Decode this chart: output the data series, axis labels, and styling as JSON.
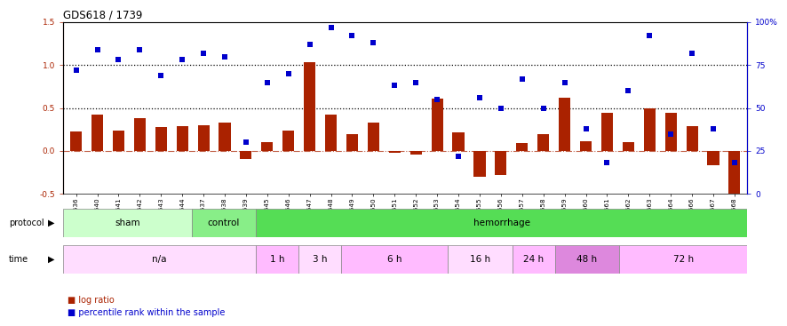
{
  "title": "GDS618 / 1739",
  "samples": [
    "GSM16636",
    "GSM16640",
    "GSM16641",
    "GSM16642",
    "GSM16643",
    "GSM16644",
    "GSM16637",
    "GSM16638",
    "GSM16639",
    "GSM16645",
    "GSM16646",
    "GSM16647",
    "GSM16648",
    "GSM16649",
    "GSM16650",
    "GSM16651",
    "GSM16652",
    "GSM16653",
    "GSM16654",
    "GSM16655",
    "GSM16656",
    "GSM16657",
    "GSM16658",
    "GSM16659",
    "GSM16660",
    "GSM16661",
    "GSM16662",
    "GSM16663",
    "GSM16664",
    "GSM16666",
    "GSM16667",
    "GSM16668"
  ],
  "log_ratio": [
    0.23,
    0.42,
    0.24,
    0.38,
    0.28,
    0.29,
    0.3,
    0.33,
    -0.09,
    0.1,
    0.24,
    1.03,
    0.42,
    0.2,
    0.33,
    -0.02,
    -0.04,
    0.61,
    0.22,
    -0.3,
    -0.28,
    0.09,
    0.2,
    0.62,
    0.11,
    0.44,
    0.1,
    0.5,
    0.44,
    0.29,
    -0.17,
    -0.55
  ],
  "percentile_pct": [
    72,
    84,
    78,
    84,
    69,
    78,
    82,
    80,
    30,
    65,
    70,
    87,
    97,
    92,
    88,
    63,
    65,
    55,
    22,
    56,
    50,
    67,
    50,
    65,
    38,
    18,
    60,
    92,
    35,
    82,
    38,
    18
  ],
  "protocol_groups": [
    {
      "label": "sham",
      "start": 0,
      "end": 6,
      "color": "#ccffcc"
    },
    {
      "label": "control",
      "start": 6,
      "end": 9,
      "color": "#88ee88"
    },
    {
      "label": "hemorrhage",
      "start": 9,
      "end": 32,
      "color": "#55dd55"
    }
  ],
  "time_groups": [
    {
      "label": "n/a",
      "start": 0,
      "end": 9,
      "color": "#ffddff"
    },
    {
      "label": "1 h",
      "start": 9,
      "end": 11,
      "color": "#ffbbff"
    },
    {
      "label": "3 h",
      "start": 11,
      "end": 13,
      "color": "#ffddff"
    },
    {
      "label": "6 h",
      "start": 13,
      "end": 18,
      "color": "#ffbbff"
    },
    {
      "label": "16 h",
      "start": 18,
      "end": 21,
      "color": "#ffddff"
    },
    {
      "label": "24 h",
      "start": 21,
      "end": 23,
      "color": "#ffbbff"
    },
    {
      "label": "48 h",
      "start": 23,
      "end": 26,
      "color": "#dd88dd"
    },
    {
      "label": "72 h",
      "start": 26,
      "end": 32,
      "color": "#ffbbff"
    }
  ],
  "ylim_left": [
    -0.5,
    1.5
  ],
  "ylim_right": [
    0,
    100
  ],
  "bar_color": "#aa2200",
  "dot_color": "#0000cc",
  "hlines": [
    0.5,
    1.0
  ],
  "yticks_left": [
    -0.5,
    0.0,
    0.5,
    1.0,
    1.5
  ],
  "yticks_right": [
    0,
    25,
    50,
    75,
    100
  ],
  "ytick_right_labels": [
    "0",
    "25",
    "50",
    "75",
    "100%"
  ]
}
